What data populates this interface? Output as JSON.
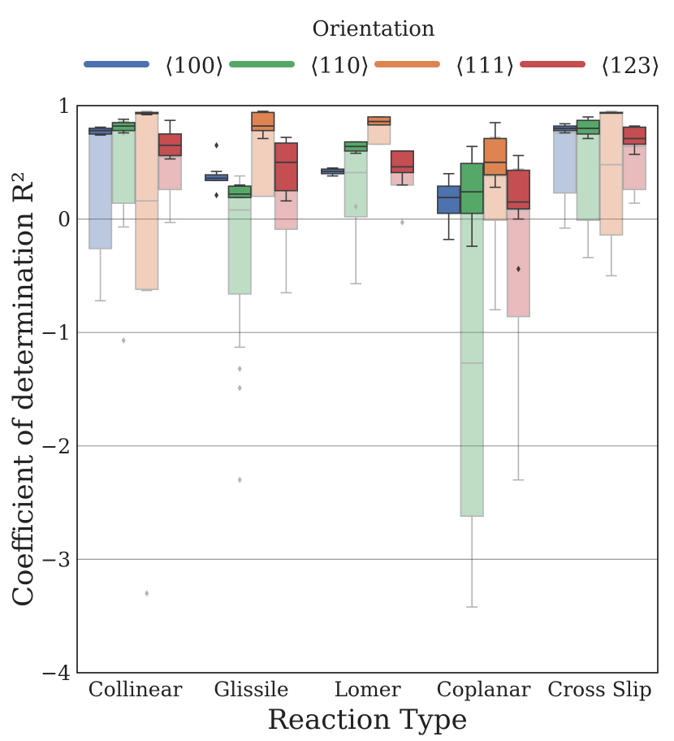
{
  "chart_data": {
    "type": "box",
    "title": "",
    "xlabel": "Reaction Type",
    "ylabel": "Coefficient of determination R²",
    "ylim": [
      -4,
      1
    ],
    "yticks": [
      1,
      0,
      -1,
      -2,
      -3,
      -4
    ],
    "ytick_labels": [
      "1",
      "0",
      "−1",
      "−2",
      "−3",
      "−4"
    ],
    "grid": "horizontal",
    "categories": [
      "Collinear",
      "Glissile",
      "Lomer",
      "Coplanar",
      "Cross Slip"
    ],
    "legend": {
      "title": "Orientation",
      "placement": "top",
      "entries": [
        "⟨100⟩",
        "⟨110⟩",
        "⟨111⟩",
        "⟨123⟩"
      ]
    },
    "colors": [
      "#4c72b0",
      "#55a868",
      "#dd8452",
      "#c44e52"
    ],
    "series": [
      {
        "name": "⟨100⟩",
        "solid": [
          {
            "q1": 0.75,
            "med": 0.78,
            "q3": 0.8,
            "wlo": 0.74,
            "whi": 0.81,
            "outliers": []
          },
          {
            "q1": 0.34,
            "med": 0.36,
            "q3": 0.39,
            "wlo": 0.34,
            "whi": 0.42,
            "outliers": [
              0.65,
              0.21
            ]
          },
          {
            "q1": 0.4,
            "med": 0.42,
            "q3": 0.44,
            "wlo": 0.38,
            "whi": 0.45,
            "outliers": []
          },
          {
            "q1": 0.05,
            "med": 0.19,
            "q3": 0.29,
            "wlo": -0.18,
            "whi": 0.4,
            "outliers": []
          },
          {
            "q1": 0.78,
            "med": 0.8,
            "q3": 0.82,
            "wlo": 0.76,
            "whi": 0.84,
            "outliers": []
          }
        ],
        "faded": [
          {
            "q1": -0.26,
            "med": 0.77,
            "q3": 0.78,
            "wlo": -0.72,
            "whi": 0.79,
            "outliers": []
          },
          null,
          null,
          null,
          {
            "q1": 0.23,
            "med": 0.76,
            "q3": 0.79,
            "wlo": -0.08,
            "whi": 0.8,
            "outliers": []
          }
        ]
      },
      {
        "name": "⟨110⟩",
        "solid": [
          {
            "q1": 0.78,
            "med": 0.82,
            "q3": 0.85,
            "wlo": 0.76,
            "whi": 0.88,
            "outliers": []
          },
          {
            "q1": 0.19,
            "med": 0.22,
            "q3": 0.29,
            "wlo": 0.19,
            "whi": 0.3,
            "outliers": []
          },
          {
            "q1": 0.6,
            "med": 0.64,
            "q3": 0.68,
            "wlo": 0.58,
            "whi": 0.68,
            "outliers": []
          },
          {
            "q1": 0.05,
            "med": 0.24,
            "q3": 0.49,
            "wlo": -0.24,
            "whi": 0.64,
            "outliers": []
          },
          {
            "q1": 0.75,
            "med": 0.8,
            "q3": 0.87,
            "wlo": 0.71,
            "whi": 0.9,
            "outliers": []
          }
        ],
        "faded": [
          {
            "q1": 0.14,
            "med": 0.83,
            "q3": 0.85,
            "wlo": -0.07,
            "whi": 0.86,
            "outliers": [
              0.76,
              -1.07
            ]
          },
          {
            "q1": -0.66,
            "med": 0.08,
            "q3": 0.26,
            "wlo": -1.13,
            "whi": 0.38,
            "outliers": [
              -1.32,
              -1.49,
              -2.3
            ]
          },
          {
            "q1": 0.02,
            "med": 0.41,
            "q3": 0.66,
            "wlo": -0.57,
            "whi": 0.67,
            "outliers": [
              0.11
            ]
          },
          {
            "q1": -2.62,
            "med": -1.27,
            "q3": 0.48,
            "wlo": -3.42,
            "whi": 0.64,
            "outliers": []
          },
          {
            "q1": -0.01,
            "med": 0.76,
            "q3": 0.8,
            "wlo": -0.34,
            "whi": 0.81,
            "outliers": []
          }
        ]
      },
      {
        "name": "⟨111⟩",
        "solid": [
          {
            "q1": 0.93,
            "med": 0.93,
            "q3": 0.94,
            "wlo": 0.92,
            "whi": 0.94,
            "outliers": []
          },
          {
            "q1": 0.78,
            "med": 0.82,
            "q3": 0.94,
            "wlo": 0.71,
            "whi": 0.95,
            "outliers": []
          },
          {
            "q1": 0.83,
            "med": 0.86,
            "q3": 0.9,
            "wlo": 0.83,
            "whi": 0.9,
            "outliers": []
          },
          {
            "q1": 0.39,
            "med": 0.5,
            "q3": 0.71,
            "wlo": 0.28,
            "whi": 0.85,
            "outliers": []
          },
          {
            "q1": 0.94,
            "med": 0.94,
            "q3": 0.94,
            "wlo": 0.94,
            "whi": 0.94,
            "outliers": []
          }
        ],
        "faded": [
          {
            "q1": -0.62,
            "med": 0.16,
            "q3": 0.94,
            "wlo": -0.63,
            "whi": 0.95,
            "outliers": [
              -3.3
            ]
          },
          {
            "q1": 0.2,
            "med": 0.8,
            "q3": 0.93,
            "wlo": 0.2,
            "whi": 0.94,
            "outliers": []
          },
          {
            "q1": 0.66,
            "med": 0.83,
            "q3": 0.87,
            "wlo": 0.66,
            "whi": 0.88,
            "outliers": []
          },
          {
            "q1": -0.01,
            "med": 0.38,
            "q3": 0.7,
            "wlo": -0.8,
            "whi": 0.72,
            "outliers": []
          },
          {
            "q1": -0.14,
            "med": 0.48,
            "q3": 0.94,
            "wlo": -0.5,
            "whi": 0.95,
            "outliers": []
          }
        ]
      },
      {
        "name": "⟨123⟩",
        "solid": [
          {
            "q1": 0.56,
            "med": 0.65,
            "q3": 0.75,
            "wlo": 0.53,
            "whi": 0.87,
            "outliers": []
          },
          {
            "q1": 0.25,
            "med": 0.5,
            "q3": 0.67,
            "wlo": 0.16,
            "whi": 0.72,
            "outliers": []
          },
          {
            "q1": 0.41,
            "med": 0.46,
            "q3": 0.6,
            "wlo": 0.3,
            "whi": 0.6,
            "outliers": []
          },
          {
            "q1": 0.09,
            "med": 0.15,
            "q3": 0.43,
            "wlo": 0.0,
            "whi": 0.56,
            "outliers": [
              -0.44
            ]
          },
          {
            "q1": 0.66,
            "med": 0.71,
            "q3": 0.81,
            "wlo": 0.57,
            "whi": 0.82,
            "outliers": []
          }
        ],
        "faded": [
          {
            "q1": 0.26,
            "med": 0.55,
            "q3": 0.58,
            "wlo": -0.03,
            "whi": 0.6,
            "outliers": []
          },
          {
            "q1": -0.09,
            "med": 0.42,
            "q3": 0.46,
            "wlo": -0.65,
            "whi": 0.48,
            "outliers": []
          },
          {
            "q1": 0.3,
            "med": 0.41,
            "q3": 0.44,
            "wlo": 0.3,
            "whi": 0.45,
            "outliers": [
              -0.03
            ]
          },
          {
            "q1": -0.86,
            "med": 0.08,
            "q3": 0.42,
            "wlo": -2.3,
            "whi": 0.44,
            "outliers": []
          },
          {
            "q1": 0.26,
            "med": 0.64,
            "q3": 0.68,
            "wlo": 0.14,
            "whi": 0.7,
            "outliers": []
          }
        ]
      }
    ]
  }
}
